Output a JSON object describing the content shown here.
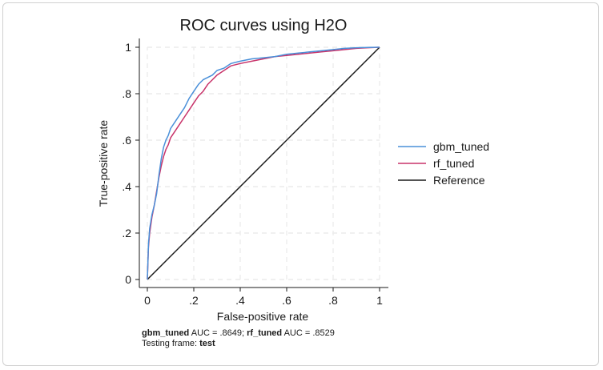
{
  "chart_data": {
    "type": "line",
    "title": "ROC curves using H2O",
    "xlabel": "False-positive rate",
    "ylabel": "True-positive rate",
    "xlim": [
      0,
      1
    ],
    "ylim": [
      0,
      1
    ],
    "xticks": [
      "0",
      ".2",
      ".4",
      ".6",
      ".8",
      "1"
    ],
    "yticks": [
      "0",
      ".2",
      ".4",
      ".6",
      ".8",
      "1"
    ],
    "grid": true,
    "legend_position": "right",
    "series": [
      {
        "name": "gbm_tuned",
        "color": "#4a90d9",
        "x": [
          0,
          0.005,
          0.01,
          0.02,
          0.03,
          0.04,
          0.05,
          0.06,
          0.07,
          0.08,
          0.09,
          0.1,
          0.12,
          0.14,
          0.16,
          0.18,
          0.2,
          0.22,
          0.24,
          0.26,
          0.28,
          0.3,
          0.33,
          0.36,
          0.4,
          0.45,
          0.5,
          0.55,
          0.6,
          0.65,
          0.7,
          0.75,
          0.8,
          0.85,
          0.9,
          0.95,
          1.0
        ],
        "y": [
          0,
          0.15,
          0.22,
          0.28,
          0.32,
          0.37,
          0.45,
          0.52,
          0.57,
          0.6,
          0.62,
          0.65,
          0.68,
          0.71,
          0.74,
          0.78,
          0.81,
          0.84,
          0.86,
          0.87,
          0.88,
          0.9,
          0.91,
          0.93,
          0.94,
          0.95,
          0.955,
          0.96,
          0.97,
          0.975,
          0.98,
          0.985,
          0.99,
          0.995,
          0.998,
          0.999,
          1.0
        ]
      },
      {
        "name": "rf_tuned",
        "color": "#c8336a",
        "x": [
          0,
          0.005,
          0.01,
          0.02,
          0.03,
          0.04,
          0.05,
          0.06,
          0.07,
          0.08,
          0.09,
          0.1,
          0.12,
          0.14,
          0.16,
          0.18,
          0.2,
          0.22,
          0.24,
          0.26,
          0.28,
          0.3,
          0.33,
          0.36,
          0.4,
          0.45,
          0.5,
          0.55,
          0.6,
          0.65,
          0.7,
          0.75,
          0.8,
          0.85,
          0.9,
          0.95,
          1.0
        ],
        "y": [
          0,
          0.14,
          0.2,
          0.27,
          0.32,
          0.38,
          0.44,
          0.49,
          0.53,
          0.56,
          0.58,
          0.61,
          0.64,
          0.67,
          0.7,
          0.73,
          0.76,
          0.79,
          0.81,
          0.84,
          0.86,
          0.88,
          0.9,
          0.92,
          0.93,
          0.94,
          0.95,
          0.96,
          0.965,
          0.97,
          0.975,
          0.98,
          0.985,
          0.99,
          0.995,
          0.998,
          1.0
        ]
      },
      {
        "name": "Reference",
        "color": "#1a1a1a",
        "x": [
          0,
          1
        ],
        "y": [
          0,
          1
        ]
      }
    ],
    "notes": {
      "gbm_name": "gbm_tuned",
      "gbm_auc": " AUC = .8649; ",
      "rf_name": "rf_tuned",
      "rf_auc": " AUC = .8529",
      "frame_label": "Testing frame: ",
      "frame_value": "test"
    }
  }
}
